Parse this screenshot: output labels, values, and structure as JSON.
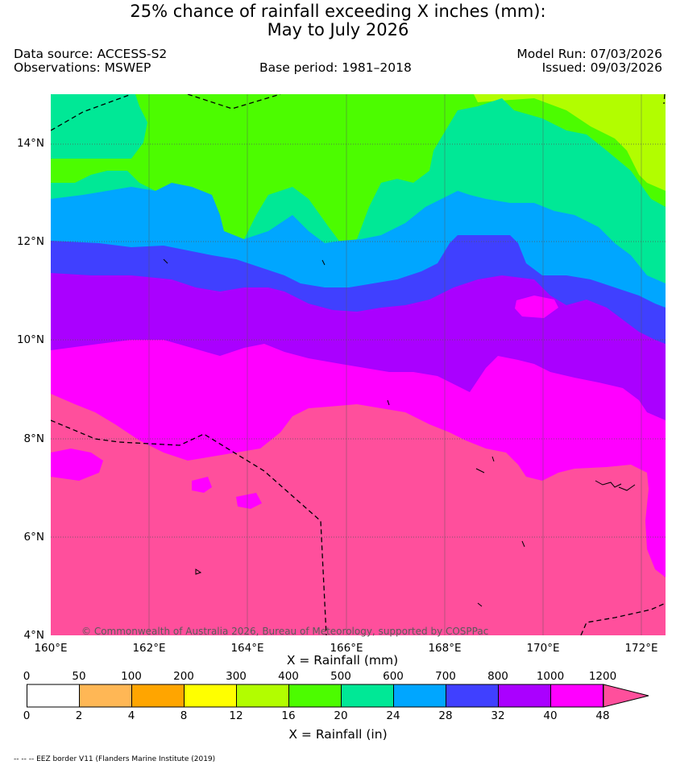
{
  "title": {
    "line1": "25% chance of rainfall exceeding X inches (mm):",
    "line2": "May to July 2026"
  },
  "meta": {
    "data_source": "Data source: ACCESS-S2",
    "observations": "Observations: MSWEP",
    "base_period": "Base period: 1981–2018",
    "model_run": "Model Run: 07/03/2026",
    "issued": "Issued: 09/03/2026"
  },
  "map": {
    "lat_labels": [
      "14°N",
      "12°N",
      "10°N",
      "8°N",
      "6°N",
      "4°N"
    ],
    "lon_labels": [
      "160°E",
      "162°E",
      "164°E",
      "166°E",
      "168°E",
      "170°E",
      "172°E"
    ],
    "lat_range": [
      4,
      15
    ],
    "lon_range": [
      160,
      172.5
    ],
    "copyright": "© Commonwealth of Australia 2026, Bureau of Meteorology, supported by COSPPac",
    "eez_border_style": "dashed black"
  },
  "legend": {
    "mm_title": "X = Rainfall (mm)",
    "in_title": "X = Rainfall (in)",
    "mm_labels": [
      "0",
      "50",
      "100",
      "200",
      "300",
      "400",
      "500",
      "600",
      "700",
      "800",
      "1000",
      "1200"
    ],
    "in_labels": [
      "0",
      "2",
      "4",
      "8",
      "12",
      "16",
      "20",
      "24",
      "28",
      "32",
      "40",
      "48"
    ],
    "colors": [
      "#ffffff",
      "#ffb755",
      "#ffa500",
      "#ffff00",
      "#b2fd00",
      "#4cfc00",
      "#00e896",
      "#00a6ff",
      "#4040ff",
      "#aa00ff",
      "#ff00ff",
      "#ff4f9c"
    ]
  },
  "footnote": "-- -- -- EEZ border V11 (Flanders Marine Institute (2019)"
}
